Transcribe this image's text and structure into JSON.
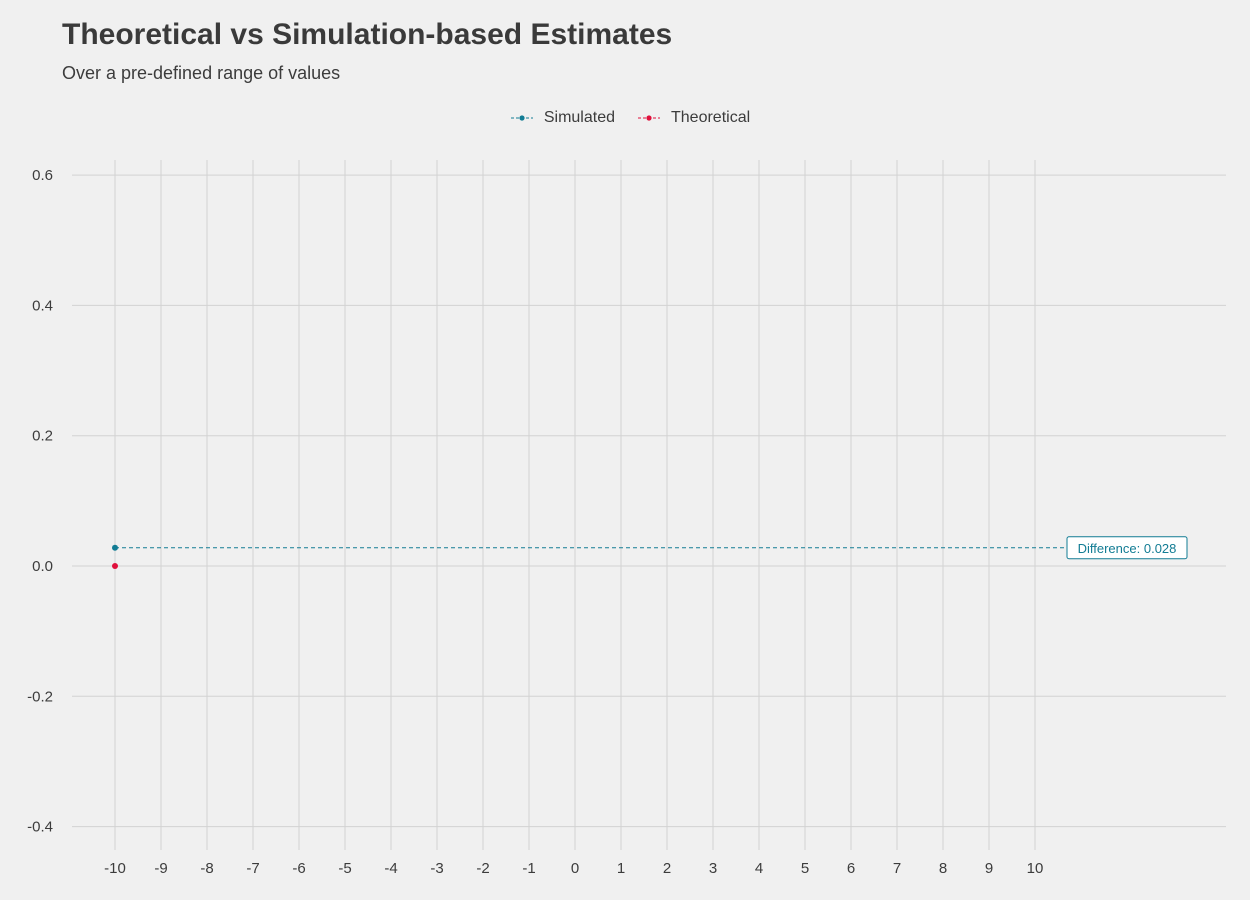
{
  "chart_data": {
    "type": "scatter",
    "title": "Theoretical vs Simulation-based Estimates",
    "subtitle": "Over a pre-defined range of values",
    "x_ticks": [
      -10,
      -9,
      -8,
      -7,
      -6,
      -5,
      -4,
      -3,
      -2,
      -1,
      0,
      1,
      2,
      3,
      4,
      5,
      6,
      7,
      8,
      9,
      10
    ],
    "y_ticks": [
      -0.4,
      -0.2,
      0.0,
      0.2,
      0.4,
      0.6
    ],
    "y_tick_labels": [
      "-0.4",
      "-0.2",
      "0.0",
      "0.2",
      "0.4",
      "0.6"
    ],
    "ylim": [
      -0.4,
      0.6
    ],
    "grid": true,
    "legend_position": "top",
    "series": [
      {
        "name": "Simulated",
        "color": "#127c94",
        "points": [
          {
            "x": -10,
            "y": 0.028
          }
        ]
      },
      {
        "name": "Theoretical",
        "color": "#e0103c",
        "points": [
          {
            "x": -10,
            "y": 0.0
          }
        ]
      }
    ],
    "annotation": {
      "text": "Difference: 0.028",
      "y": 0.028,
      "color": "#127c94"
    }
  }
}
